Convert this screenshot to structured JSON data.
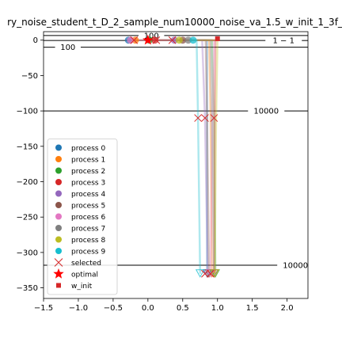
{
  "chart_data": {
    "type": "line",
    "title": "ry_noise_student_t_D_2_sample_num10000_noise_va_1.5_w_init_1_3f_",
    "xlim": [
      -1.5,
      2.3
    ],
    "ylim": [
      -365,
      12
    ],
    "xticks": [
      -1.5,
      -1.0,
      -0.5,
      0.0,
      0.5,
      1.0,
      1.5,
      2.0
    ],
    "xtick_labels": [
      "−1.5",
      "−1.0",
      "−0.5",
      "0.0",
      "0.5",
      "1.0",
      "1.5",
      "2.0"
    ],
    "yticks": [
      0,
      -50,
      -100,
      -150,
      -200,
      -250,
      -300,
      -350
    ],
    "ytick_labels": [
      "0",
      "−50",
      "−100",
      "−150",
      "−200",
      "−250",
      "−300",
      "−350"
    ],
    "grid": false,
    "legend_position": "lower-left",
    "colors": {
      "process 0": "#1f77b4",
      "process 1": "#ff7f0e",
      "process 2": "#2ca02c",
      "process 3": "#d62728",
      "process 4": "#9467bd",
      "process 5": "#8c564b",
      "process 6": "#e377c2",
      "process 7": "#7f7f7f",
      "process 8": "#bcbd22",
      "process 9": "#17becf",
      "selected": "#d62728",
      "optimal": "#ff0000",
      "w_init": "#d62728"
    },
    "contours": [
      {
        "label": "100",
        "y": 6.5,
        "label_x": 0.05
      },
      {
        "label": "100",
        "y": -10,
        "label_x": -1.15
      },
      {
        "label": "1 − 1",
        "y": -0.5,
        "label_x": 1.95
      },
      {
        "label": "10000",
        "y": -100,
        "label_x": 1.7
      },
      {
        "label": "10000",
        "y": -318,
        "label_x": 2.12
      }
    ],
    "series": [
      {
        "name": "process 0",
        "start": [
          -0.28,
          0
        ],
        "path": [
          [
            0.85,
            0
          ],
          [
            0.85,
            -100
          ],
          [
            0.85,
            -330
          ]
        ]
      },
      {
        "name": "process 1",
        "start": [
          -0.18,
          0
        ],
        "path": [
          [
            0.88,
            0
          ],
          [
            0.9,
            -110
          ],
          [
            0.92,
            -330
          ]
        ]
      },
      {
        "name": "process 2",
        "start": [
          0.02,
          0
        ],
        "path": [
          [
            0.92,
            0
          ],
          [
            0.95,
            -110
          ],
          [
            0.97,
            -330
          ]
        ]
      },
      {
        "name": "process 3",
        "start": [
          0.1,
          0
        ],
        "path": [
          [
            0.97,
            0
          ],
          [
            0.96,
            -110
          ],
          [
            0.95,
            -330
          ]
        ]
      },
      {
        "name": "process 4",
        "start": [
          0.38,
          0
        ],
        "path": [
          [
            0.78,
            0
          ],
          [
            0.82,
            -110
          ],
          [
            0.86,
            -330
          ]
        ]
      },
      {
        "name": "process 5",
        "start": [
          0.5,
          0
        ],
        "path": [
          [
            0.83,
            0
          ],
          [
            0.85,
            -110
          ],
          [
            0.88,
            -330
          ]
        ]
      },
      {
        "name": "process 6",
        "start": [
          -0.25,
          0
        ],
        "path": [
          [
            0.95,
            0
          ],
          [
            0.93,
            -110
          ],
          [
            0.9,
            -330
          ]
        ]
      },
      {
        "name": "process 7",
        "start": [
          0.58,
          0
        ],
        "path": [
          [
            0.9,
            0
          ],
          [
            0.92,
            -110
          ],
          [
            0.95,
            -330
          ]
        ]
      },
      {
        "name": "process 8",
        "start": [
          0.45,
          0
        ],
        "path": [
          [
            1.0,
            0
          ],
          [
            0.98,
            -110
          ],
          [
            0.96,
            -330
          ]
        ]
      },
      {
        "name": "process 9",
        "start": [
          0.65,
          0
        ],
        "path": [
          [
            0.7,
            0
          ],
          [
            0.72,
            -110
          ],
          [
            0.75,
            -330
          ]
        ]
      }
    ],
    "selected": [
      [
        -0.2,
        0
      ],
      [
        0.12,
        0
      ],
      [
        0.35,
        0
      ],
      [
        0.72,
        -110
      ],
      [
        0.82,
        -110
      ],
      [
        0.95,
        -110
      ],
      [
        0.82,
        -330
      ],
      [
        0.9,
        -330
      ]
    ],
    "optimal": [
      0.0,
      0
    ],
    "w_init": [
      1.0,
      2
    ],
    "legend_entries": [
      "process 0",
      "process 1",
      "process 2",
      "process 3",
      "process 4",
      "process 5",
      "process 6",
      "process 7",
      "process 8",
      "process 9",
      "selected",
      "optimal",
      "w_init"
    ]
  }
}
